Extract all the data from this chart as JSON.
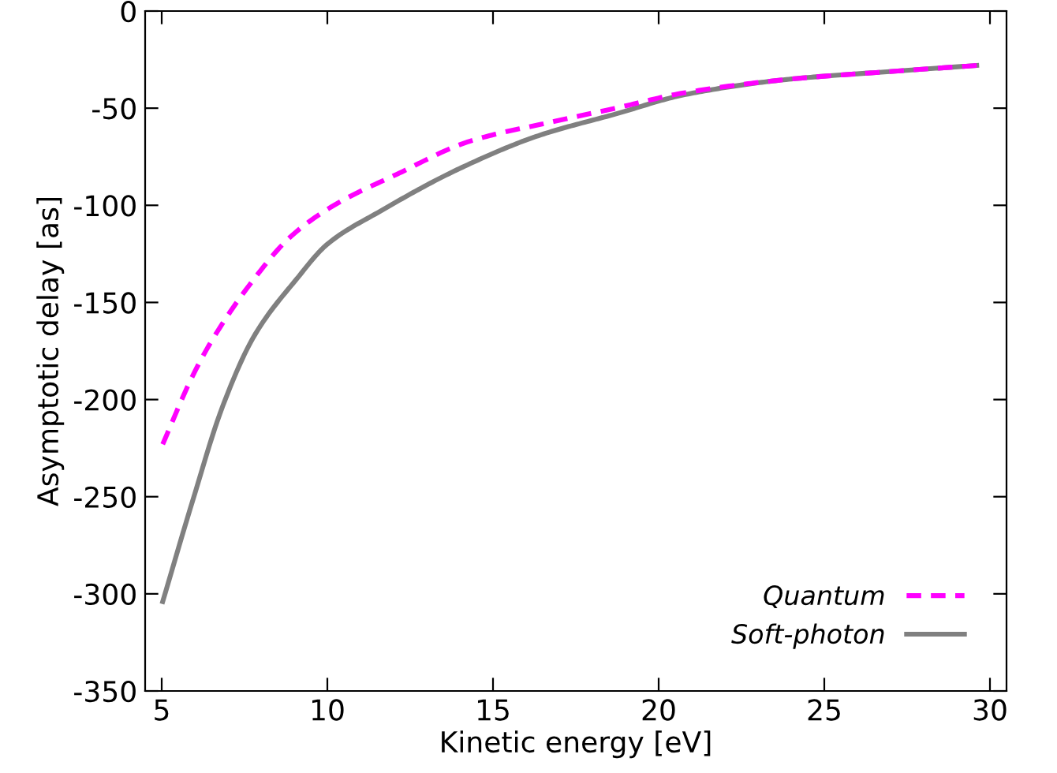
{
  "chart_data": {
    "type": "line",
    "xlabel": "Kinetic energy [eV]",
    "ylabel": "Asymptotic delay [as]",
    "xlim": [
      4.5,
      30.5
    ],
    "ylim": [
      -350,
      0
    ],
    "xticks": [
      5,
      10,
      15,
      20,
      25,
      30
    ],
    "yticks": [
      -350,
      -300,
      -250,
      -200,
      -150,
      -100,
      -50,
      0
    ],
    "grid": false,
    "legend": "bottom right",
    "series": [
      {
        "name": "Quantum",
        "color": "#ff00ff",
        "line_style": "dashed",
        "x": [
          5.03,
          5.9,
          6.5,
          7.65,
          8.9,
          10.2,
          12.1,
          14.3,
          16.8,
          18.7,
          20.8,
          24.0,
          27.1,
          29.6
        ],
        "values": [
          -223,
          -189,
          -170,
          -141,
          -116,
          -100,
          -84,
          -67,
          -57,
          -50,
          -42,
          -35,
          -31,
          -28
        ]
      },
      {
        "name": "Soft-photon",
        "color": "#808080",
        "line_style": "solid",
        "x": [
          5.03,
          5.9,
          6.85,
          7.8,
          9.07,
          10.0,
          11.6,
          14.0,
          16.4,
          18.7,
          20.8,
          24.0,
          27.1,
          29.6
        ],
        "values": [
          -304,
          -254,
          -203,
          -167,
          -138,
          -120,
          -103,
          -81,
          -64,
          -53,
          -43,
          -35,
          -31,
          -28
        ]
      }
    ]
  }
}
